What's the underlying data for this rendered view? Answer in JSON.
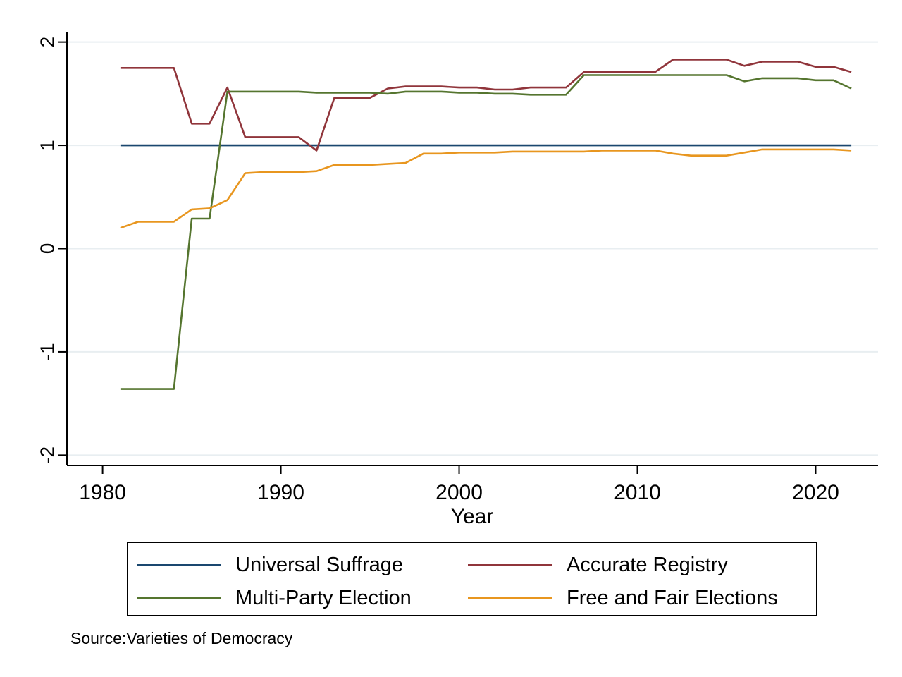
{
  "chart_data": {
    "type": "line",
    "title": "",
    "xlabel": "Year",
    "ylabel": "",
    "xlim": [
      1978,
      2023.5
    ],
    "ylim": [
      -2.1,
      2.1
    ],
    "xticks": [
      1980,
      1990,
      2000,
      2010,
      2020
    ],
    "yticks": [
      -2,
      -1,
      0,
      1,
      2
    ],
    "grid": true,
    "legend_position": "bottom",
    "x": [
      1981,
      1982,
      1983,
      1984,
      1985,
      1986,
      1987,
      1988,
      1989,
      1990,
      1991,
      1992,
      1993,
      1994,
      1995,
      1996,
      1997,
      1998,
      1999,
      2000,
      2001,
      2002,
      2003,
      2004,
      2005,
      2006,
      2007,
      2008,
      2009,
      2010,
      2011,
      2012,
      2013,
      2014,
      2015,
      2016,
      2017,
      2018,
      2019,
      2020,
      2021,
      2022
    ],
    "series": [
      {
        "name": "Universal Suffrage",
        "color": "#1a476f",
        "values": [
          1,
          1,
          1,
          1,
          1,
          1,
          1,
          1,
          1,
          1,
          1,
          1,
          1,
          1,
          1,
          1,
          1,
          1,
          1,
          1,
          1,
          1,
          1,
          1,
          1,
          1,
          1,
          1,
          1,
          1,
          1,
          1,
          1,
          1,
          1,
          1,
          1,
          1,
          1,
          1,
          1,
          1
        ]
      },
      {
        "name": "Accurate Registry",
        "color": "#90353b",
        "values": [
          1.75,
          1.75,
          1.75,
          1.75,
          1.21,
          1.21,
          1.56,
          1.08,
          1.08,
          1.08,
          1.08,
          0.95,
          1.46,
          1.46,
          1.46,
          1.55,
          1.57,
          1.57,
          1.57,
          1.56,
          1.56,
          1.54,
          1.54,
          1.56,
          1.56,
          1.56,
          1.71,
          1.71,
          1.71,
          1.71,
          1.71,
          1.83,
          1.83,
          1.83,
          1.83,
          1.77,
          1.81,
          1.81,
          1.81,
          1.76,
          1.76,
          1.71
        ]
      },
      {
        "name": "Multi-Party Election",
        "color": "#55752f",
        "values": [
          -1.36,
          -1.36,
          -1.36,
          -1.36,
          0.29,
          0.29,
          1.52,
          1.52,
          1.52,
          1.52,
          1.52,
          1.51,
          1.51,
          1.51,
          1.51,
          1.5,
          1.52,
          1.52,
          1.52,
          1.51,
          1.51,
          1.5,
          1.5,
          1.49,
          1.49,
          1.49,
          1.68,
          1.68,
          1.68,
          1.68,
          1.68,
          1.68,
          1.68,
          1.68,
          1.68,
          1.62,
          1.65,
          1.65,
          1.65,
          1.63,
          1.63,
          1.55
        ]
      },
      {
        "name": "Free and Fair Elections",
        "color": "#e8961f",
        "values": [
          0.2,
          0.26,
          0.26,
          0.26,
          0.38,
          0.39,
          0.47,
          0.73,
          0.74,
          0.74,
          0.74,
          0.75,
          0.81,
          0.81,
          0.81,
          0.82,
          0.83,
          0.92,
          0.92,
          0.93,
          0.93,
          0.93,
          0.94,
          0.94,
          0.94,
          0.94,
          0.94,
          0.95,
          0.95,
          0.95,
          0.95,
          0.92,
          0.9,
          0.9,
          0.9,
          0.93,
          0.96,
          0.96,
          0.96,
          0.96,
          0.96,
          0.95
        ]
      }
    ]
  },
  "legend": {
    "items": [
      {
        "label": "Universal Suffrage",
        "color": "#1a476f"
      },
      {
        "label": "Accurate Registry",
        "color": "#90353b"
      },
      {
        "label": "Multi-Party Election",
        "color": "#55752f"
      },
      {
        "label": "Free and Fair Elections",
        "color": "#e8961f"
      }
    ]
  },
  "note": "Source:Varieties of Democracy"
}
